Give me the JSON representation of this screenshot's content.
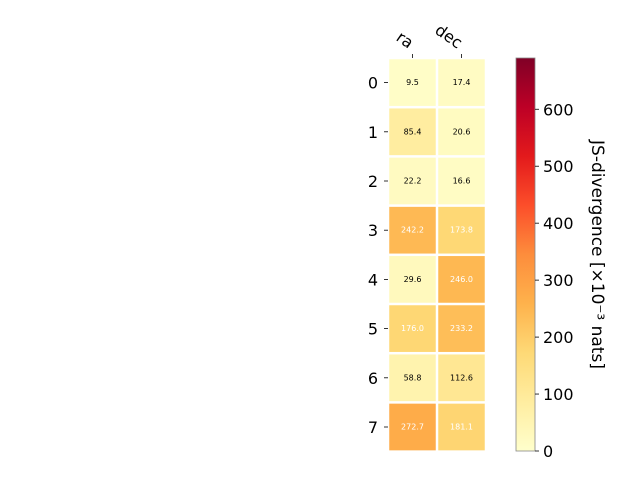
{
  "chart_data": {
    "type": "heatmap",
    "columns": [
      "ra",
      "dec"
    ],
    "rows": [
      "0",
      "1",
      "2",
      "3",
      "4",
      "5",
      "6",
      "7"
    ],
    "values": [
      [
        9.5,
        17.4
      ],
      [
        85.4,
        20.6
      ],
      [
        22.2,
        16.6
      ],
      [
        242.2,
        173.8
      ],
      [
        29.6,
        246.0
      ],
      [
        176.0,
        233.2
      ],
      [
        58.8,
        112.6
      ],
      [
        272.7,
        181.1
      ]
    ],
    "value_labels": [
      [
        "9.5",
        "17.4"
      ],
      [
        "85.4",
        "20.6"
      ],
      [
        "22.2",
        "16.6"
      ],
      [
        "242.2",
        "173.8"
      ],
      [
        "29.6",
        "246.0"
      ],
      [
        "176.0",
        "233.2"
      ],
      [
        "58.8",
        "112.6"
      ],
      [
        "272.7",
        "181.1"
      ]
    ],
    "colorbar": {
      "label": "JS-divergence [×10⁻³ nats]",
      "colormap": "YlOrRd",
      "range": [
        0,
        690
      ],
      "ticks": [
        0,
        100,
        200,
        300,
        400,
        500,
        600
      ],
      "tick_labels": [
        "0",
        "100",
        "200",
        "300",
        "400",
        "500",
        "600"
      ]
    },
    "colors": {
      "cmap_stops": [
        "#ffffcc",
        "#ffeda0",
        "#fed976",
        "#feb24c",
        "#fd8d3c",
        "#fc4e2a",
        "#e31a1c",
        "#bd0026",
        "#800026"
      ],
      "dark_text": "#000000",
      "light_text": "#ffffff"
    }
  }
}
